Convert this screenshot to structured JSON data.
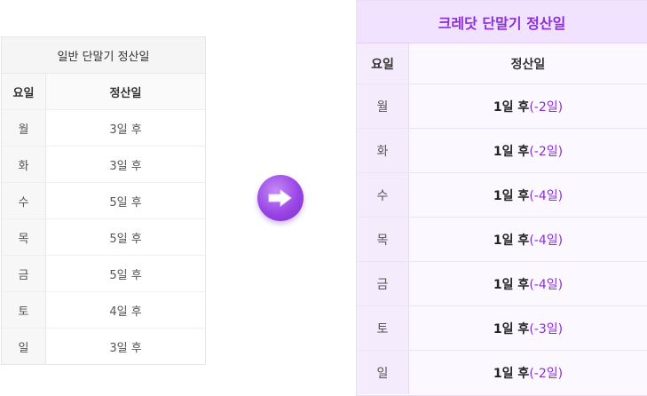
{
  "general": {
    "title": "일반 단말기 정산일",
    "header": {
      "day": "요일",
      "value": "정산일"
    },
    "rows": [
      {
        "day": "월",
        "value": "3일 후"
      },
      {
        "day": "화",
        "value": "3일 후"
      },
      {
        "day": "수",
        "value": "5일 후"
      },
      {
        "day": "목",
        "value": "5일 후"
      },
      {
        "day": "금",
        "value": "5일 후"
      },
      {
        "day": "토",
        "value": "4일 후"
      },
      {
        "day": "일",
        "value": "3일 후"
      }
    ]
  },
  "arrow_icon": "arrow-right-icon",
  "credit": {
    "title": "크레닷 단말기 정산일",
    "header": {
      "day": "요일",
      "value": "정산일"
    },
    "rows": [
      {
        "day": "월",
        "after": "1일 후",
        "diff": "(-2일)"
      },
      {
        "day": "화",
        "after": "1일 후",
        "diff": "(-2일)"
      },
      {
        "day": "수",
        "after": "1일 후",
        "diff": "(-4일)"
      },
      {
        "day": "목",
        "after": "1일 후",
        "diff": "(-4일)"
      },
      {
        "day": "금",
        "after": "1일 후",
        "diff": "(-4일)"
      },
      {
        "day": "토",
        "after": "1일 후",
        "diff": "(-3일)"
      },
      {
        "day": "일",
        "after": "1일 후",
        "diff": "(-2일)"
      }
    ]
  },
  "colors": {
    "accent": "#8b2fd6",
    "credit_title_bg": "#f1e2ff"
  }
}
